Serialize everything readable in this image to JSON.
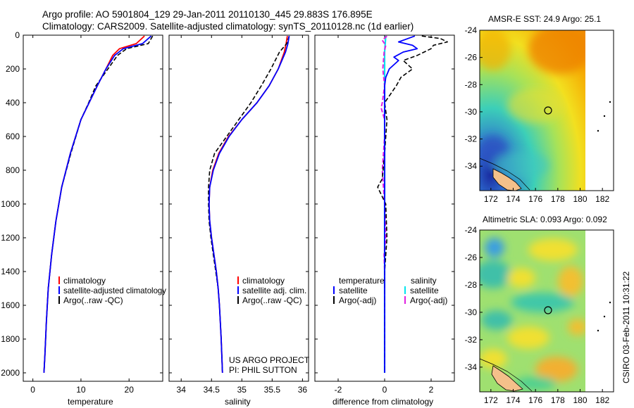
{
  "header": {
    "line1": "Argo profile: AO 5901804_129 29-Jan-2011 20110130_445 29.883S 176.895E",
    "line2": "Climatology: CARS2009. Satellite-adjusted climatology: synTS_20110128.nc (1d earlier)"
  },
  "footer": {
    "project": "US ARGO PROJECT",
    "pi": "PI: PHIL SUTTON",
    "stamp": "CSIRO 03-Feb-2011 10:31:22"
  },
  "colors": {
    "climatology": "#ff0000",
    "satellite": "#0000ff",
    "argo": "#000000",
    "temp_diff_sat": "#0000ff",
    "sal_diff_sat": "#00e5ee",
    "sal_diff_argo": "#e020e0"
  },
  "chart_data": [
    {
      "type": "line",
      "title": "",
      "xlabel": "temperature",
      "ylabel": "",
      "xlim": [
        -2,
        27
      ],
      "ylim": [
        2050,
        0
      ],
      "xticks": [
        "0",
        "10",
        "20"
      ],
      "yticks": [
        "0",
        "200",
        "400",
        "600",
        "800",
        "1000",
        "1200",
        "1400",
        "1600",
        "1800",
        "2000"
      ],
      "legend": [
        "climatology",
        "satellite-adjusted climatology",
        "Argo(..raw -QC)"
      ],
      "depth": [
        5,
        50,
        80,
        120,
        200,
        300,
        400,
        500,
        700,
        900,
        1100,
        1300,
        1500,
        1700,
        1900,
        2000
      ],
      "series": [
        {
          "name": "climatology",
          "values": [
            23.2,
            21.5,
            18.0,
            16.6,
            15.2,
            13.4,
            11.7,
            10.0,
            7.8,
            6.0,
            4.8,
            3.9,
            3.2,
            2.8,
            2.5,
            2.3
          ]
        },
        {
          "name": "satellite-adjusted climatology",
          "values": [
            24.6,
            22.8,
            18.8,
            17.0,
            15.2,
            13.4,
            11.7,
            10.0,
            7.8,
            6.0,
            4.8,
            3.9,
            3.2,
            2.8,
            2.5,
            2.3
          ]
        },
        {
          "name": "Argo(..raw -QC)",
          "values": [
            24.9,
            24.0,
            19.5,
            17.6,
            15.6,
            13.1,
            11.6,
            10.0,
            7.9,
            6.0,
            4.8,
            3.9,
            3.2,
            2.8,
            2.5,
            2.3
          ]
        }
      ]
    },
    {
      "type": "line",
      "title": "",
      "xlabel": "salinity",
      "ylabel": "",
      "xlim": [
        33.8,
        36.1
      ],
      "ylim": [
        2050,
        0
      ],
      "xticks": [
        "34",
        "34.5",
        "35",
        "35.5",
        "36"
      ],
      "legend": [
        "climatology",
        "satellite adj. clim.",
        "Argo(..raw -QC)"
      ],
      "depth": [
        5,
        50,
        100,
        200,
        300,
        400,
        500,
        600,
        700,
        800,
        900,
        1000,
        1100,
        1200,
        1300,
        1400,
        1500,
        1600,
        1800,
        2000
      ],
      "series": [
        {
          "name": "climatology",
          "values": [
            35.75,
            35.73,
            35.7,
            35.6,
            35.45,
            35.25,
            35.0,
            34.78,
            34.62,
            34.52,
            34.47,
            34.46,
            34.47,
            34.5,
            34.54,
            34.58,
            34.61,
            34.63,
            34.66,
            34.68
          ]
        },
        {
          "name": "satellite adj. clim.",
          "values": [
            35.78,
            35.76,
            35.72,
            35.6,
            35.45,
            35.25,
            35.0,
            34.79,
            34.63,
            34.53,
            34.47,
            34.46,
            34.47,
            34.5,
            34.54,
            34.58,
            34.61,
            34.63,
            34.66,
            34.68
          ]
        },
        {
          "name": "Argo(..raw -QC)",
          "values": [
            35.78,
            35.74,
            35.62,
            35.48,
            35.32,
            35.15,
            34.95,
            34.75,
            34.55,
            34.47,
            34.45,
            34.45,
            34.46,
            34.49,
            34.53,
            34.57,
            34.61,
            34.63,
            34.66,
            34.68
          ]
        }
      ]
    },
    {
      "type": "line",
      "title": "",
      "xlabel": "difference from climatology",
      "ylabel": "",
      "xlim": [
        -3,
        3
      ],
      "ylim": [
        2050,
        0
      ],
      "xticks": [
        "-2",
        "0",
        "2"
      ],
      "legend": {
        "temperature_header": "temperature",
        "salinity_header": "salinity",
        "temp_satellite": "satellite",
        "temp_argo": "Argo(-adj)",
        "sal_satellite": "satellite",
        "sal_argo": "Argo(-adj)"
      },
      "series": [
        {
          "name": "temperature satellite",
          "depth": [
            5,
            20,
            40,
            60,
            80,
            100,
            130,
            150,
            200,
            250,
            300,
            500,
            800,
            1000,
            1400,
            1800,
            2000
          ],
          "values": [
            1.3,
            1.0,
            0.6,
            1.2,
            1.4,
            0.8,
            0.4,
            0.6,
            0.2,
            0.05,
            0.0,
            0.0,
            0.0,
            0.0,
            0.0,
            0.0,
            0.0
          ]
        },
        {
          "name": "temperature Argo(-adj)",
          "depth": [
            5,
            20,
            40,
            60,
            80,
            120,
            150,
            200,
            250,
            300,
            400,
            500,
            700,
            850,
            900,
            1000,
            1200,
            1400,
            1600,
            2000
          ],
          "values": [
            1.6,
            2.4,
            2.7,
            2.1,
            2.0,
            1.4,
            0.8,
            1.2,
            0.7,
            0.5,
            0.0,
            0.1,
            0.0,
            -0.1,
            -0.3,
            0.05,
            0.1,
            0.0,
            0.0,
            0.0
          ]
        },
        {
          "name": "salinity satellite",
          "depth": [
            5,
            100,
            300,
            500,
            800,
            1000,
            1400,
            2000
          ],
          "values": [
            0.05,
            0.0,
            0.0,
            0.0,
            0.0,
            0.0,
            0.0,
            0.0
          ]
        },
        {
          "name": "salinity Argo(-adj)",
          "depth": [
            5,
            30,
            60,
            100,
            150,
            200,
            300,
            400,
            430,
            500,
            600,
            700,
            800,
            1000,
            1200,
            1300,
            1400,
            2000
          ],
          "values": [
            0.1,
            -0.1,
            0.05,
            -0.02,
            -0.05,
            -0.08,
            0.0,
            -0.1,
            -0.15,
            0.0,
            0.0,
            -0.05,
            -0.1,
            0.0,
            0.05,
            -0.02,
            0.0,
            0.0
          ]
        }
      ]
    }
  ],
  "maps": [
    {
      "title": "AMSR-E SST: 24.9 Argo: 25.1",
      "xticks": [
        "172",
        "174",
        "176",
        "178",
        "180",
        "182"
      ],
      "yticks": [
        "-24",
        "-26",
        "-28",
        "-30",
        "-32",
        "-34"
      ]
    },
    {
      "title": "Altimetric SLA: 0.093 Argo: 0.092",
      "xticks": [
        "172",
        "174",
        "176",
        "178",
        "180",
        "182"
      ],
      "yticks": [
        "-24",
        "-26",
        "-28",
        "-30",
        "-32",
        "-34"
      ]
    }
  ]
}
